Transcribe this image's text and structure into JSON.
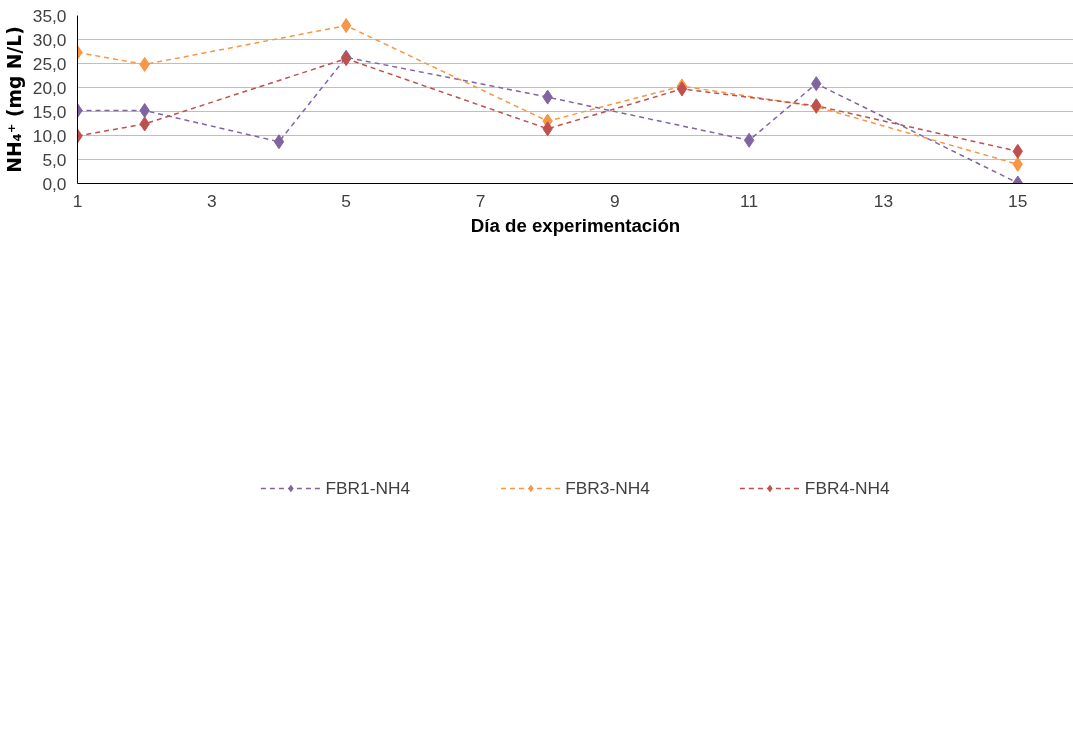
{
  "chart_data": {
    "type": "line",
    "xlabel": "Día de experimentación",
    "ylabel": "NH₄⁺ (mg N/L)",
    "xlim": [
      1,
      15.83
    ],
    "xticks": [
      1,
      3,
      5,
      7,
      9,
      11,
      13,
      15
    ],
    "ylim": [
      0,
      35
    ],
    "yticks": [
      {
        "value": 0,
        "label": "0,0"
      },
      {
        "value": 5,
        "label": "5,0"
      },
      {
        "value": 10,
        "label": "10,0"
      },
      {
        "value": 15,
        "label": "15,0"
      },
      {
        "value": 20,
        "label": "20,0"
      },
      {
        "value": 25,
        "label": "25,0"
      },
      {
        "value": 30,
        "label": "30,0"
      },
      {
        "value": 35,
        "label": "35,0"
      }
    ],
    "grid": "y",
    "legend": "bottom",
    "marker": "diamond",
    "line_style": "dashed",
    "series": [
      {
        "name": "FBR1-NH4",
        "color": "#8064a2",
        "x": [
          1,
          2,
          4,
          5,
          8,
          11,
          12,
          15
        ],
        "values": [
          15.2,
          15.2,
          8.7,
          26.3,
          18.0,
          9.0,
          20.8,
          0.1
        ]
      },
      {
        "name": "FBR3-NH4",
        "color": "#f79646",
        "x": [
          1,
          2,
          5,
          8,
          10,
          12,
          15
        ],
        "values": [
          27.3,
          24.8,
          32.9,
          13.0,
          20.3,
          16.0,
          4.0
        ]
      },
      {
        "name": "FBR4-NH4",
        "color": "#c0504d",
        "x": [
          1,
          2,
          5,
          8,
          10,
          12,
          15
        ],
        "values": [
          9.9,
          12.4,
          26.0,
          11.4,
          19.7,
          16.2,
          6.7
        ]
      }
    ]
  }
}
